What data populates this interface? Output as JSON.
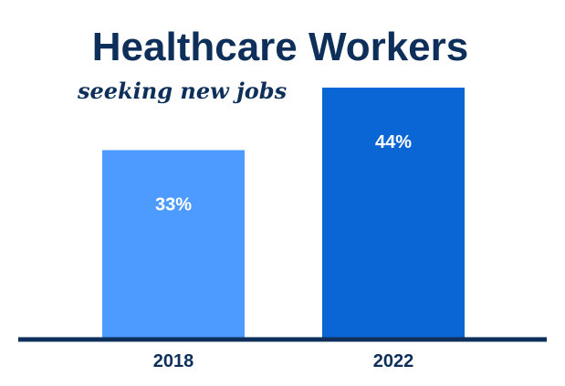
{
  "chart_data": {
    "type": "bar",
    "title": "Healthcare Workers",
    "subtitle": "seeking new jobs",
    "categories": [
      "2018",
      "2022"
    ],
    "values": [
      33,
      44
    ],
    "data_labels": [
      "33%",
      "44%"
    ],
    "unit": "%",
    "ylim": [
      0,
      53
    ],
    "grid": false,
    "legend": "none",
    "colors": {
      "bars": [
        "#4d9bff",
        "#0a66d4"
      ],
      "axis": "#0d2f5a",
      "text": "#0d2f5a",
      "label": "#ffffff"
    }
  }
}
